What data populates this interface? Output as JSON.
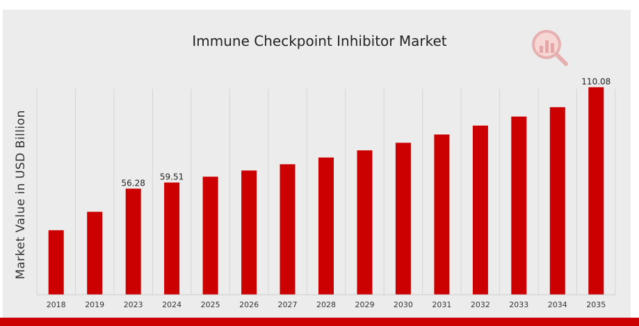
{
  "colors": {
    "bar": "#cc0000",
    "background": "#ececec",
    "accent_strip": "#cc0000",
    "grid": "#d4d4d4"
  },
  "watermark": {
    "icon": "chart-magnifier-logo-icon"
  },
  "chart_data": {
    "type": "bar",
    "title": "Immune Checkpoint Inhibitor Market",
    "xlabel": "",
    "ylabel": "Market Value in USD Billion",
    "categories": [
      "2018",
      "2019",
      "2023",
      "2024",
      "2025",
      "2026",
      "2027",
      "2028",
      "2029",
      "2030",
      "2031",
      "2032",
      "2033",
      "2034",
      "2035"
    ],
    "values": [
      34.2,
      44.0,
      56.28,
      59.51,
      62.6,
      65.9,
      69.2,
      72.8,
      76.6,
      80.6,
      85.0,
      89.7,
      94.5,
      99.5,
      110.08
    ],
    "data_labels": {
      "2": "56.28",
      "3": "59.51",
      "14": "110.08"
    },
    "ylim": [
      0,
      125
    ],
    "grid": {
      "vertical": true,
      "horizontal": false
    },
    "legend": "none"
  }
}
